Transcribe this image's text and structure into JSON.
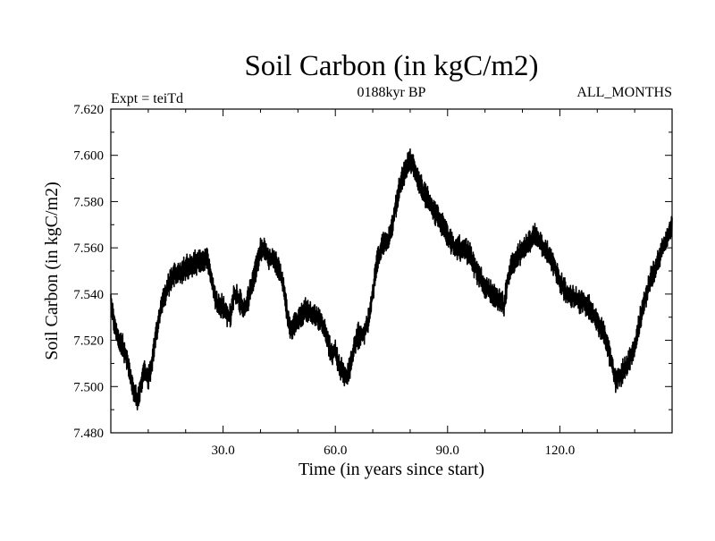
{
  "chart_data": {
    "type": "line",
    "title": "Soil Carbon (in kgC/m2)",
    "subtitle_left": "Expt = teiTd",
    "subtitle_center": "0188kyr BP",
    "subtitle_right": "ALL_MONTHS",
    "xlabel": "Time (in years since start)",
    "ylabel": "Soil Carbon (in kgC/m2)",
    "xlim": [
      0,
      150
    ],
    "ylim": [
      7.48,
      7.62
    ],
    "x_ticks": [
      30,
      60,
      90,
      120
    ],
    "x_tick_labels": [
      "30.0",
      "60.0",
      "90.0",
      "120.0"
    ],
    "y_ticks": [
      7.48,
      7.5,
      7.52,
      7.54,
      7.56,
      7.58,
      7.6,
      7.62
    ],
    "y_tick_labels": [
      "7.480",
      "7.500",
      "7.520",
      "7.540",
      "7.560",
      "7.580",
      "7.600",
      "7.620"
    ],
    "line_color": "#000000",
    "series": [
      {
        "name": "Soil Carbon",
        "x": [
          0,
          1,
          2,
          3,
          4,
          5,
          6,
          7,
          8,
          9,
          10,
          11,
          12,
          14,
          16,
          18,
          20,
          22,
          24,
          25,
          26,
          27,
          28,
          29,
          30,
          31,
          32,
          33,
          34,
          35,
          36,
          38,
          40,
          41,
          42,
          44,
          45,
          46,
          47,
          48,
          49,
          50,
          52,
          54,
          56,
          58,
          59,
          60,
          61,
          62,
          63,
          64,
          65,
          66,
          67,
          68,
          69,
          70,
          71,
          72,
          73,
          74,
          75,
          76,
          77,
          78,
          79,
          80,
          81,
          82,
          83,
          84,
          86,
          88,
          90,
          92,
          94,
          96,
          98,
          100,
          102,
          104,
          105,
          106,
          107,
          108,
          110,
          112,
          113,
          114,
          116,
          118,
          120,
          122,
          124,
          126,
          128,
          130,
          132,
          134,
          135,
          136,
          138,
          140,
          142,
          144,
          146,
          148,
          150
        ],
        "y": [
          7.538,
          7.527,
          7.521,
          7.518,
          7.513,
          7.507,
          7.499,
          7.493,
          7.5,
          7.508,
          7.503,
          7.51,
          7.522,
          7.538,
          7.546,
          7.549,
          7.551,
          7.553,
          7.554,
          7.556,
          7.554,
          7.547,
          7.538,
          7.535,
          7.534,
          7.531,
          7.53,
          7.54,
          7.538,
          7.535,
          7.534,
          7.546,
          7.559,
          7.56,
          7.556,
          7.554,
          7.55,
          7.545,
          7.534,
          7.523,
          7.527,
          7.529,
          7.533,
          7.531,
          7.529,
          7.52,
          7.514,
          7.516,
          7.509,
          7.506,
          7.504,
          7.509,
          7.517,
          7.522,
          7.522,
          7.524,
          7.53,
          7.54,
          7.553,
          7.559,
          7.562,
          7.564,
          7.568,
          7.577,
          7.585,
          7.591,
          7.594,
          7.598,
          7.595,
          7.59,
          7.587,
          7.583,
          7.577,
          7.572,
          7.565,
          7.56,
          7.56,
          7.557,
          7.549,
          7.543,
          7.54,
          7.537,
          7.535,
          7.545,
          7.552,
          7.555,
          7.559,
          7.562,
          7.565,
          7.564,
          7.56,
          7.554,
          7.545,
          7.54,
          7.538,
          7.537,
          7.534,
          7.528,
          7.522,
          7.51,
          7.502,
          7.505,
          7.509,
          7.517,
          7.533,
          7.545,
          7.553,
          7.562,
          7.57
        ]
      }
    ]
  }
}
